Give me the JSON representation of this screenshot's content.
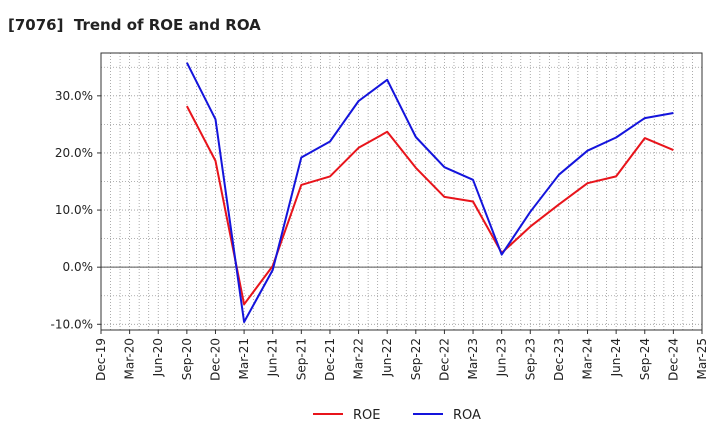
{
  "chart_data": {
    "type": "line",
    "title": "[7076]  Trend of ROE and ROA",
    "xlabel": "",
    "ylabel": "",
    "x_ticks": [
      "Dec-19",
      "Mar-20",
      "Jun-20",
      "Sep-20",
      "Dec-20",
      "Mar-21",
      "Jun-21",
      "Sep-21",
      "Dec-21",
      "Mar-22",
      "Jun-22",
      "Sep-22",
      "Dec-22",
      "Mar-23",
      "Jun-23",
      "Sep-23",
      "Dec-23",
      "Mar-24",
      "Jun-24",
      "Sep-24",
      "Dec-24",
      "Mar-25"
    ],
    "y_ticks": [
      {
        "value": 30,
        "label": "30.0%"
      },
      {
        "value": 20,
        "label": "20.0%"
      },
      {
        "value": 10,
        "label": "10.0%"
      },
      {
        "value": 0,
        "label": "0.0%"
      },
      {
        "value": -10,
        "label": "-10.0%"
      }
    ],
    "ylim": [
      -11,
      37.5
    ],
    "grid": true,
    "legend_position": "bottom-center",
    "x": [
      "Sep-20",
      "Dec-20",
      "Mar-21",
      "Jun-21",
      "Sep-21",
      "Dec-21",
      "Mar-22",
      "Jun-22",
      "Sep-22",
      "Dec-22",
      "Mar-23",
      "Jun-23",
      "Sep-23",
      "Dec-23",
      "Mar-24",
      "Jun-24",
      "Sep-24",
      "Dec-24"
    ],
    "series": [
      {
        "name": "ROE",
        "color": "#e8141b",
        "values": [
          28.2,
          18.6,
          -6.5,
          0.2,
          14.4,
          15.9,
          20.9,
          23.7,
          17.4,
          12.3,
          11.5,
          2.5,
          7.1,
          11.0,
          14.7,
          15.9,
          22.6,
          20.5
        ]
      },
      {
        "name": "ROA",
        "color": "#1414dc",
        "values": [
          35.8,
          25.9,
          -9.6,
          -0.5,
          19.2,
          22.0,
          29.1,
          32.8,
          22.8,
          17.5,
          15.3,
          2.2,
          9.7,
          16.2,
          20.4,
          22.7,
          26.1,
          27.0
        ]
      }
    ]
  }
}
